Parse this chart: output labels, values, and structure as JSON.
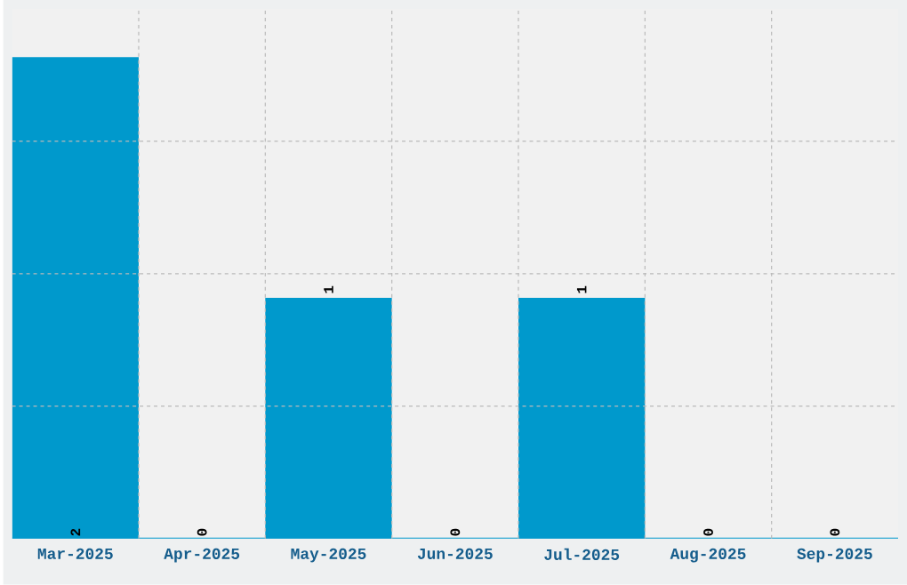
{
  "chart_data": {
    "type": "bar",
    "categories": [
      "Mar-2025",
      "Apr-2025",
      "May-2025",
      "Jun-2025",
      "Jul-2025",
      "Aug-2025",
      "Sep-2025"
    ],
    "values": [
      2,
      0,
      1,
      0,
      1,
      0,
      0
    ],
    "color": "#0099cc",
    "data_labels": true,
    "grid": true,
    "tick_labels": "x",
    "ylim": [
      0,
      2.2
    ],
    "yticks": [
      {
        "value": 0.55,
        "label": null
      },
      {
        "value": 1.1,
        "label": null
      },
      {
        "value": 1.65,
        "label": null
      }
    ]
  }
}
